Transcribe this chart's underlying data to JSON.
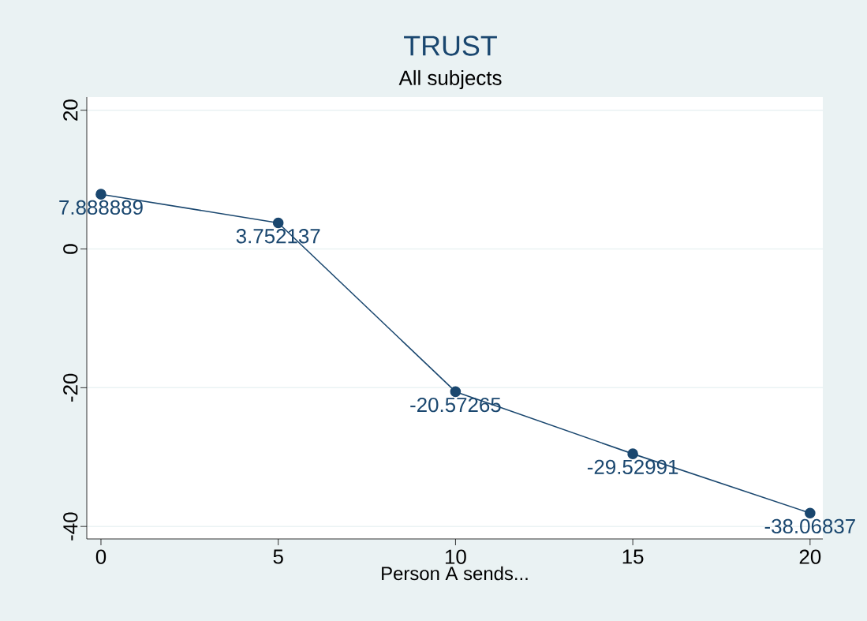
{
  "chart_data": {
    "type": "line",
    "title": "TRUST",
    "subtitle": "All subjects",
    "xlabel": "Person A sends...",
    "x": [
      0,
      5,
      10,
      15,
      20
    ],
    "values": [
      7.888889,
      3.752137,
      -20.57265,
      -29.52991,
      -38.06837
    ],
    "color": "#1a476f",
    "marker": "circle",
    "line_style": "solid",
    "data_labels": true,
    "grid": "y",
    "xlim": [
      -0.4,
      20.36
    ],
    "ylim": [
      -41.8,
      21.9
    ],
    "xticks": [
      0,
      5,
      10,
      15,
      20
    ],
    "yticks": [
      -40,
      -20,
      0,
      20
    ]
  }
}
